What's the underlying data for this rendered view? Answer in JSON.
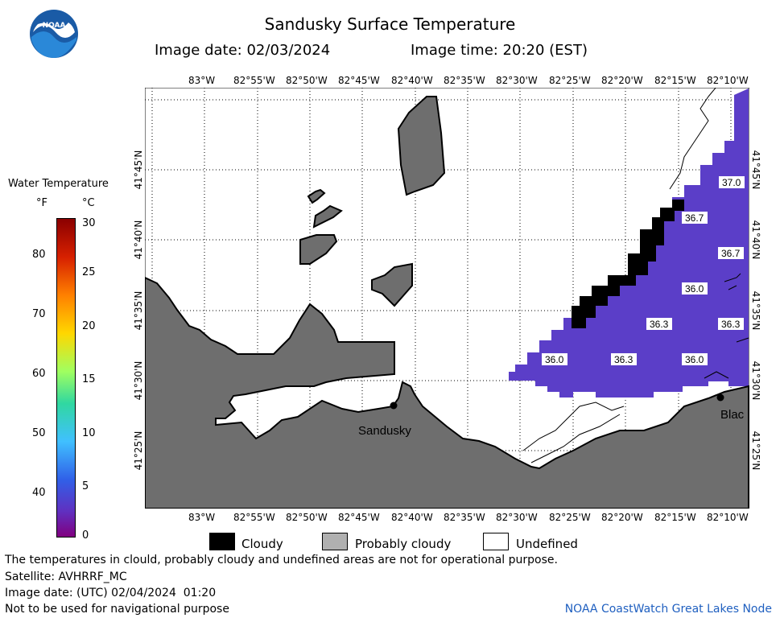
{
  "header": {
    "title": "Sandusky Surface Temperature",
    "image_date": "Image date: 02/03/2024",
    "image_time": "Image time: 20:20 (EST)"
  },
  "colorbar": {
    "title": "Water Temperature",
    "unit_f": "°F",
    "unit_c": "°C",
    "f_ticks": [
      "80",
      "70",
      "60",
      "50",
      "40"
    ],
    "c_ticks": [
      "30",
      "25",
      "20",
      "15",
      "10",
      "5",
      "0"
    ]
  },
  "map": {
    "lon_labels": [
      "83°W",
      "82°55'W",
      "82°50'W",
      "82°45'W",
      "82°40'W",
      "82°35'W",
      "82°30'W",
      "82°25'W",
      "82°20'W",
      "82°15'W",
      "82°10'W"
    ],
    "lat_labels": [
      "41°45'N",
      "41°40'N",
      "41°35'N",
      "41°30'N",
      "41°25'N"
    ],
    "temp_labels": [
      "37.0",
      "36.7",
      "36.7",
      "36.0",
      "36.3",
      "36.3",
      "36.0",
      "36.3",
      "36.0"
    ],
    "places": {
      "sandusky": "Sandusky",
      "blac": "Blac"
    },
    "colors": {
      "land": "#6e6e6e",
      "water_temp": "#5b3ec8",
      "cloud": "#000000",
      "undefined": "#ffffff"
    }
  },
  "legend": {
    "cloudy": "Cloudy",
    "probably_cloudy": "Probably cloudy",
    "undefined": "Undefined"
  },
  "footer": {
    "note": "The temperatures in clould, probably cloudy and undefined areas are not for operational purpose.",
    "satellite": "Satellite: AVHRRF_MC",
    "utc_date": "Image date: (UTC) 02/04/2024  01:20",
    "nav": "Not to be used for navigational purpose",
    "node": "NOAA CoastWatch Great Lakes Node"
  }
}
